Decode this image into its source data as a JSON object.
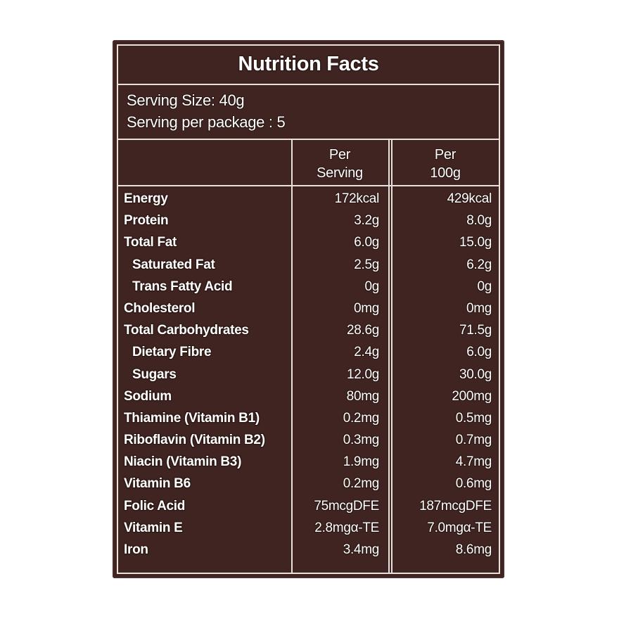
{
  "label": {
    "title": "Nutrition Facts",
    "serving_size": "Serving Size: 40g",
    "servings_per_package": "Serving per package : 5",
    "columns": [
      "Per Serving",
      "Per 100g"
    ],
    "column_lines": [
      [
        "Per",
        "Serving"
      ],
      [
        "Per",
        "100g"
      ]
    ],
    "rows": [
      {
        "name": "Energy",
        "per_serving": "172kcal",
        "per_100g": "429kcal",
        "indent": false
      },
      {
        "name": "Protein",
        "per_serving": "3.2g",
        "per_100g": "8.0g",
        "indent": false
      },
      {
        "name": "Total Fat",
        "per_serving": "6.0g",
        "per_100g": "15.0g",
        "indent": false
      },
      {
        "name": "Saturated Fat",
        "per_serving": "2.5g",
        "per_100g": "6.2g",
        "indent": true
      },
      {
        "name": "Trans Fatty Acid",
        "per_serving": "0g",
        "per_100g": "0g",
        "indent": true
      },
      {
        "name": "Cholesterol",
        "per_serving": "0mg",
        "per_100g": "0mg",
        "indent": false
      },
      {
        "name": "Total Carbohydrates",
        "per_serving": "28.6g",
        "per_100g": "71.5g",
        "indent": false
      },
      {
        "name": "Dietary Fibre",
        "per_serving": "2.4g",
        "per_100g": "6.0g",
        "indent": true
      },
      {
        "name": "Sugars",
        "per_serving": "12.0g",
        "per_100g": "30.0g",
        "indent": true
      },
      {
        "name": "Sodium",
        "per_serving": "80mg",
        "per_100g": "200mg",
        "indent": false
      },
      {
        "name": "Thiamine (Vitamin B1)",
        "per_serving": "0.2mg",
        "per_100g": "0.5mg",
        "indent": false
      },
      {
        "name": "Riboflavin (Vitamin B2)",
        "per_serving": "0.3mg",
        "per_100g": "0.7mg",
        "indent": false
      },
      {
        "name": "Niacin (Vitamin B3)",
        "per_serving": "1.9mg",
        "per_100g": "4.7mg",
        "indent": false
      },
      {
        "name": "Vitamin B6",
        "per_serving": "0.2mg",
        "per_100g": "0.6mg",
        "indent": false
      },
      {
        "name": "Folic Acid",
        "per_serving": "75mcgDFE",
        "per_100g": "187mcgDFE",
        "indent": false
      },
      {
        "name": "Vitamin E",
        "per_serving": "2.8mgα-TE",
        "per_100g": "7.0mgα-TE",
        "indent": false
      },
      {
        "name": "Iron",
        "per_serving": "3.4mg",
        "per_100g": "8.6mg",
        "indent": false
      }
    ]
  },
  "colors": {
    "panel": "#3f2421",
    "text": "#ffffff",
    "rule": "#e9e1de"
  }
}
